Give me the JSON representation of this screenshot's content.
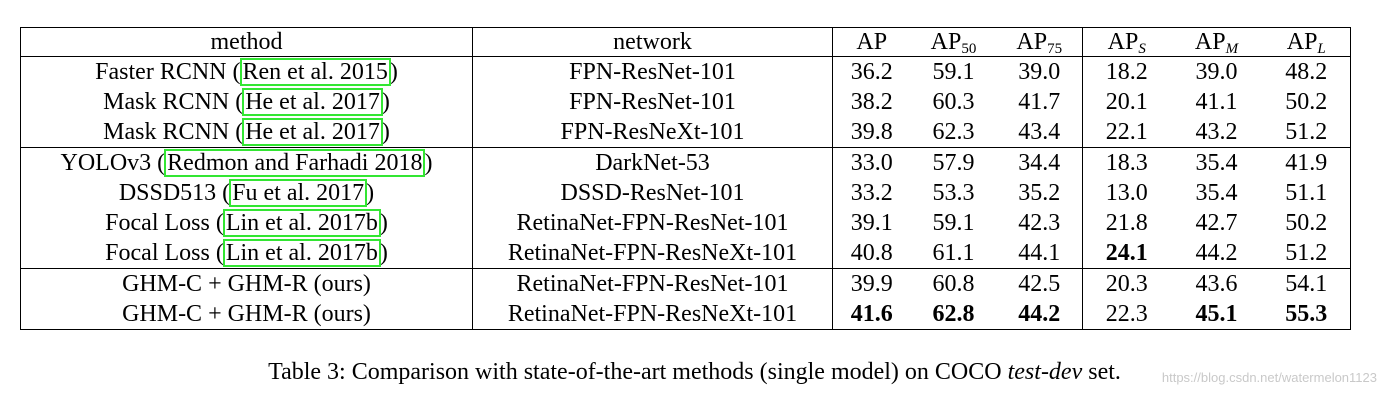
{
  "table": {
    "headers": {
      "method": "method",
      "network": "network",
      "ap": "AP",
      "ap50": {
        "base": "AP",
        "sub": "50"
      },
      "ap75": {
        "base": "AP",
        "sub": "75"
      },
      "aps": {
        "base": "AP",
        "sub": "S"
      },
      "apm": {
        "base": "AP",
        "sub": "M"
      },
      "apl": {
        "base": "AP",
        "sub": "L"
      }
    },
    "rows": [
      {
        "method": "Faster RCNN",
        "cite": "Ren et al. 2015",
        "network": "FPN-ResNet-101",
        "values": [
          "36.2",
          "59.1",
          "39.0",
          "18.2",
          "39.0",
          "48.2"
        ]
      },
      {
        "method": "Mask RCNN",
        "cite": "He et al. 2017",
        "network": "FPN-ResNet-101",
        "values": [
          "38.2",
          "60.3",
          "41.7",
          "20.1",
          "41.1",
          "50.2"
        ]
      },
      {
        "method": "Mask RCNN",
        "cite": "He et al. 2017",
        "network": "FPN-ResNeXt-101",
        "values": [
          "39.8",
          "62.3",
          "43.4",
          "22.1",
          "43.2",
          "51.2"
        ]
      },
      {
        "method": "YOLOv3",
        "cite": "Redmon and Farhadi 2018",
        "network": "DarkNet-53",
        "values": [
          "33.0",
          "57.9",
          "34.4",
          "18.3",
          "35.4",
          "41.9"
        ]
      },
      {
        "method": "DSSD513",
        "cite": "Fu et al. 2017",
        "network": "DSSD-ResNet-101",
        "values": [
          "33.2",
          "53.3",
          "35.2",
          "13.0",
          "35.4",
          "51.1"
        ]
      },
      {
        "method": "Focal Loss",
        "cite": "Lin et al. 2017b",
        "network": "RetinaNet-FPN-ResNet-101",
        "values": [
          "39.1",
          "59.1",
          "42.3",
          "21.8",
          "42.7",
          "50.2"
        ]
      },
      {
        "method": "Focal Loss",
        "cite": "Lin et al. 2017b",
        "network": "RetinaNet-FPN-ResNeXt-101",
        "values": [
          "40.8",
          "61.1",
          "44.1",
          "24.1",
          "44.2",
          "51.2"
        ],
        "bold": [
          3
        ]
      },
      {
        "method": "GHM-C + GHM-R (ours)",
        "cite": "",
        "network": "RetinaNet-FPN-ResNet-101",
        "values": [
          "39.9",
          "60.8",
          "42.5",
          "20.3",
          "43.6",
          "54.1"
        ]
      },
      {
        "method": "GHM-C + GHM-R (ours)",
        "cite": "",
        "network": "RetinaNet-FPN-ResNeXt-101",
        "values": [
          "41.6",
          "62.8",
          "44.2",
          "22.3",
          "45.1",
          "55.3"
        ],
        "bold": [
          0,
          1,
          2,
          4,
          5
        ]
      }
    ]
  },
  "caption": {
    "prefix": "Table 3: Comparison with state-of-the-art methods (single model) on COCO ",
    "emph": "test-dev",
    "suffix": " set."
  },
  "watermark": "https://blog.csdn.net/watermelon1123",
  "colors": {
    "highlight_box": "#33e633"
  }
}
